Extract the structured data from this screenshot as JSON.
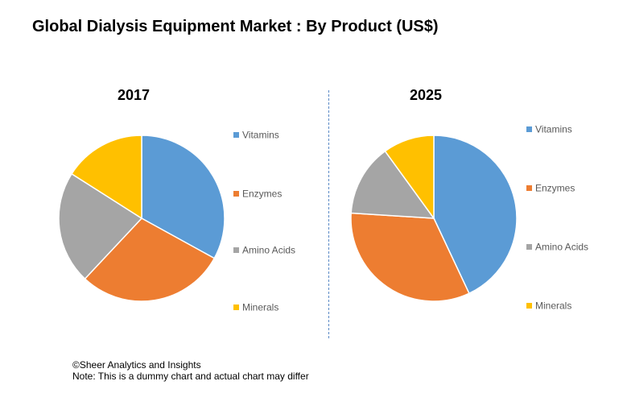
{
  "title": "Global Dialysis Equipment Market : By Product (US$)",
  "colors": {
    "Vitamins": "#5b9bd5",
    "Enzymes": "#ed7d31",
    "Amino Acids": "#a5a5a5",
    "Minerals": "#ffc000"
  },
  "chart_data": [
    {
      "type": "pie",
      "title": "2017",
      "categories": [
        "Vitamins",
        "Enzymes",
        "Amino Acids",
        "Minerals"
      ],
      "values": [
        33,
        29,
        22,
        16
      ],
      "legend": "right"
    },
    {
      "type": "pie",
      "title": "2025",
      "categories": [
        "Vitamins",
        "Enzymes",
        "Amino Acids",
        "Minerals"
      ],
      "values": [
        43,
        33,
        14,
        10
      ],
      "legend": "right"
    }
  ],
  "footer": {
    "line1": "©Sheer Analytics and Insights",
    "line2": "Note: This is a dummy chart and actual chart may differ"
  }
}
